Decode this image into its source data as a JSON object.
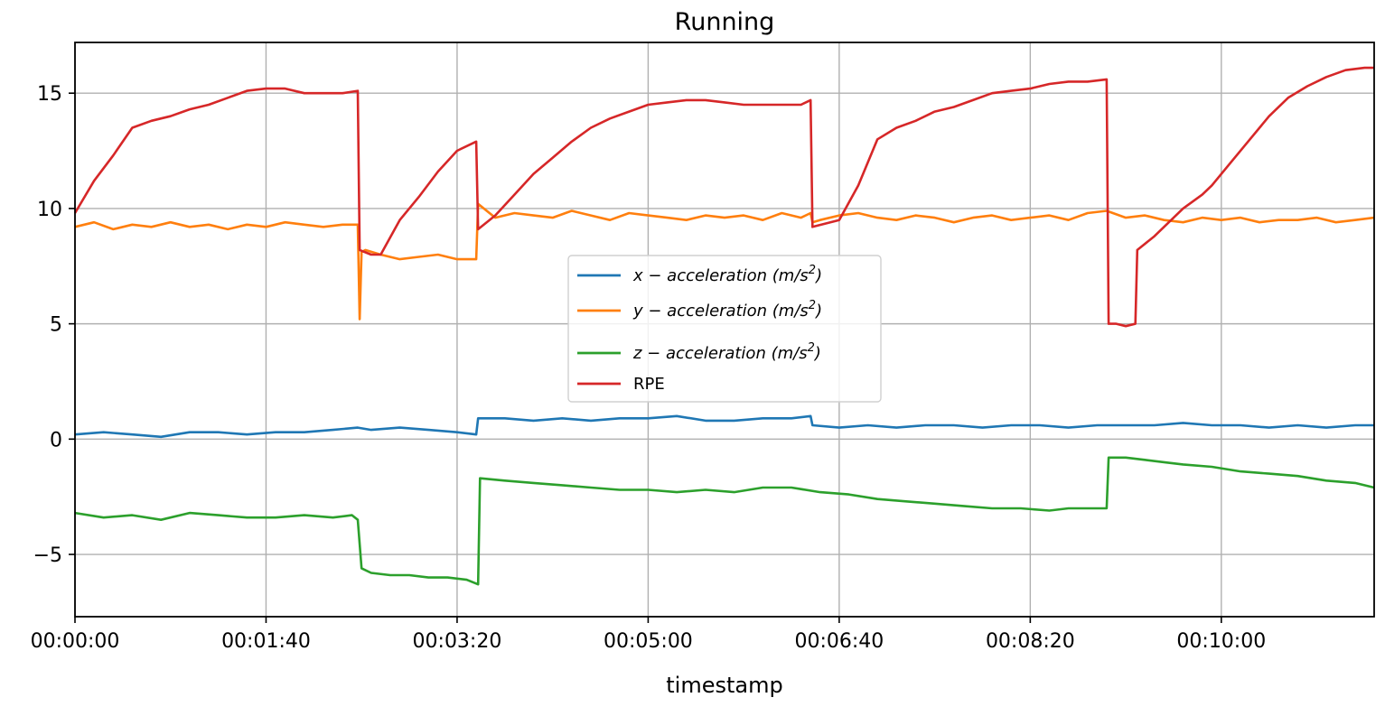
{
  "chart_data": {
    "type": "line",
    "title": "Running",
    "xlabel": "timestamp",
    "ylabel": "",
    "grid": true,
    "legend_position": "center",
    "xlim_seconds": [
      0,
      680
    ],
    "ylim": [
      -7.7,
      17.2
    ],
    "x_ticks": [
      {
        "value": 0,
        "label": "00:00:00"
      },
      {
        "value": 100,
        "label": "00:01:40"
      },
      {
        "value": 200,
        "label": "00:03:20"
      },
      {
        "value": 300,
        "label": "00:05:00"
      },
      {
        "value": 400,
        "label": "00:06:40"
      },
      {
        "value": 500,
        "label": "00:08:20"
      },
      {
        "value": 600,
        "label": "00:10:00"
      }
    ],
    "y_ticks": [
      {
        "value": -5,
        "label": "−5"
      },
      {
        "value": 0,
        "label": "0"
      },
      {
        "value": 5,
        "label": "5"
      },
      {
        "value": 10,
        "label": "10"
      },
      {
        "value": 15,
        "label": "15"
      }
    ],
    "series": [
      {
        "name": "x-acceleration (m/s²)",
        "color": "#1f77b4",
        "legend": {
          "main": "x − acceleration (m/s",
          "sup": "2",
          "close": ")"
        },
        "x": [
          0,
          15,
          30,
          45,
          60,
          75,
          90,
          105,
          120,
          135,
          148,
          155,
          170,
          185,
          200,
          210,
          211,
          225,
          240,
          255,
          270,
          285,
          300,
          315,
          330,
          345,
          360,
          375,
          385,
          386,
          400,
          415,
          430,
          445,
          460,
          475,
          490,
          505,
          520,
          535,
          550,
          565,
          580,
          595,
          610,
          625,
          640,
          655,
          670,
          680
        ],
        "y": [
          0.2,
          0.3,
          0.2,
          0.1,
          0.3,
          0.3,
          0.2,
          0.3,
          0.3,
          0.4,
          0.5,
          0.4,
          0.5,
          0.4,
          0.3,
          0.2,
          0.9,
          0.9,
          0.8,
          0.9,
          0.8,
          0.9,
          0.9,
          1.0,
          0.8,
          0.8,
          0.9,
          0.9,
          1.0,
          0.6,
          0.5,
          0.6,
          0.5,
          0.6,
          0.6,
          0.5,
          0.6,
          0.6,
          0.5,
          0.6,
          0.6,
          0.6,
          0.7,
          0.6,
          0.6,
          0.5,
          0.6,
          0.5,
          0.6,
          0.6
        ]
      },
      {
        "name": "y-acceleration (m/s²)",
        "color": "#ff7f0e",
        "legend": {
          "main": "y − acceleration (m/s",
          "sup": "2",
          "close": ")"
        },
        "x": [
          0,
          10,
          20,
          30,
          40,
          50,
          60,
          70,
          80,
          90,
          100,
          110,
          120,
          130,
          140,
          148,
          149,
          150,
          152,
          160,
          170,
          180,
          190,
          200,
          210,
          211,
          220,
          230,
          240,
          250,
          260,
          270,
          280,
          290,
          300,
          310,
          320,
          330,
          340,
          350,
          360,
          370,
          380,
          385,
          386,
          390,
          400,
          410,
          420,
          430,
          440,
          450,
          460,
          470,
          480,
          490,
          500,
          510,
          520,
          530,
          540,
          550,
          560,
          570,
          580,
          590,
          600,
          610,
          620,
          630,
          640,
          650,
          660,
          670,
          680
        ],
        "y": [
          9.2,
          9.4,
          9.1,
          9.3,
          9.2,
          9.4,
          9.2,
          9.3,
          9.1,
          9.3,
          9.2,
          9.4,
          9.3,
          9.2,
          9.3,
          9.3,
          5.2,
          8.1,
          8.2,
          8.0,
          7.8,
          7.9,
          8.0,
          7.8,
          7.8,
          10.2,
          9.6,
          9.8,
          9.7,
          9.6,
          9.9,
          9.7,
          9.5,
          9.8,
          9.7,
          9.6,
          9.5,
          9.7,
          9.6,
          9.7,
          9.5,
          9.8,
          9.6,
          9.8,
          9.4,
          9.5,
          9.7,
          9.8,
          9.6,
          9.5,
          9.7,
          9.6,
          9.4,
          9.6,
          9.7,
          9.5,
          9.6,
          9.7,
          9.5,
          9.8,
          9.9,
          9.6,
          9.7,
          9.5,
          9.4,
          9.6,
          9.5,
          9.6,
          9.4,
          9.5,
          9.5,
          9.6,
          9.4,
          9.5,
          9.6
        ]
      },
      {
        "name": "z-acceleration (m/s²)",
        "color": "#2ca02c",
        "legend": {
          "main": "z − acceleration (m/s",
          "sup": "2",
          "close": ")"
        },
        "x": [
          0,
          15,
          30,
          45,
          60,
          75,
          90,
          105,
          120,
          135,
          145,
          148,
          150,
          155,
          165,
          175,
          185,
          195,
          205,
          211,
          212,
          225,
          240,
          255,
          270,
          285,
          300,
          315,
          330,
          345,
          360,
          375,
          390,
          405,
          420,
          435,
          450,
          465,
          480,
          495,
          510,
          520,
          530,
          540,
          541,
          550,
          560,
          570,
          580,
          595,
          610,
          625,
          640,
          655,
          670,
          680
        ],
        "y": [
          -3.2,
          -3.4,
          -3.3,
          -3.5,
          -3.2,
          -3.3,
          -3.4,
          -3.4,
          -3.3,
          -3.4,
          -3.3,
          -3.5,
          -5.6,
          -5.8,
          -5.9,
          -5.9,
          -6.0,
          -6.0,
          -6.1,
          -6.3,
          -1.7,
          -1.8,
          -1.9,
          -2.0,
          -2.1,
          -2.2,
          -2.2,
          -2.3,
          -2.2,
          -2.3,
          -2.1,
          -2.1,
          -2.3,
          -2.4,
          -2.6,
          -2.7,
          -2.8,
          -2.9,
          -3.0,
          -3.0,
          -3.1,
          -3.0,
          -3.0,
          -3.0,
          -0.8,
          -0.8,
          -0.9,
          -1.0,
          -1.1,
          -1.2,
          -1.4,
          -1.5,
          -1.6,
          -1.8,
          -1.9,
          -2.1
        ]
      },
      {
        "name": "RPE",
        "color": "#d62728",
        "legend": {
          "main": "RPE",
          "sup": "",
          "close": ""
        },
        "x": [
          0,
          10,
          20,
          30,
          40,
          50,
          60,
          70,
          80,
          90,
          100,
          110,
          120,
          130,
          140,
          148,
          149,
          155,
          160,
          170,
          180,
          190,
          200,
          210,
          211,
          220,
          230,
          240,
          250,
          260,
          270,
          280,
          290,
          300,
          310,
          320,
          330,
          340,
          350,
          360,
          370,
          380,
          385,
          386,
          400,
          410,
          420,
          430,
          440,
          450,
          460,
          470,
          480,
          490,
          500,
          510,
          520,
          530,
          540,
          541,
          545,
          550,
          555,
          556,
          565,
          580,
          590,
          595,
          605,
          615,
          625,
          635,
          645,
          655,
          665,
          675,
          680
        ],
        "y": [
          9.8,
          11.2,
          12.3,
          13.5,
          13.8,
          14.0,
          14.3,
          14.5,
          14.8,
          15.1,
          15.2,
          15.2,
          15.0,
          15.0,
          15.0,
          15.1,
          8.2,
          8.0,
          8.0,
          9.5,
          10.5,
          11.6,
          12.5,
          12.9,
          9.1,
          9.7,
          10.6,
          11.5,
          12.2,
          12.9,
          13.5,
          13.9,
          14.2,
          14.5,
          14.6,
          14.7,
          14.7,
          14.6,
          14.5,
          14.5,
          14.5,
          14.5,
          14.7,
          9.2,
          9.5,
          11.0,
          13.0,
          13.5,
          13.8,
          14.2,
          14.4,
          14.7,
          15.0,
          15.1,
          15.2,
          15.4,
          15.5,
          15.5,
          15.6,
          5.0,
          5.0,
          4.9,
          5.0,
          8.2,
          8.8,
          10.0,
          10.6,
          11.0,
          12.0,
          13.0,
          14.0,
          14.8,
          15.3,
          15.7,
          16.0,
          16.1,
          16.1
        ]
      }
    ]
  }
}
